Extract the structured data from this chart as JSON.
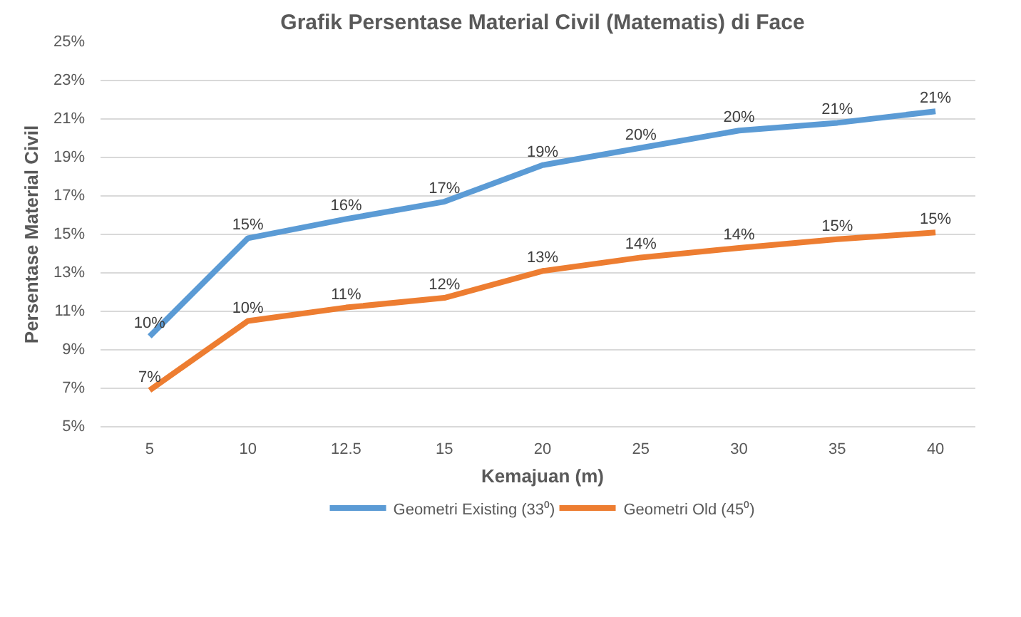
{
  "chart_data": {
    "type": "line",
    "title": "Grafik Persentase Material Civil (Matematis) di Face",
    "xlabel": "Kemajuan (m)",
    "ylabel": "Persentase Material Civil",
    "categories": [
      "5",
      "10",
      "12.5",
      "15",
      "20",
      "25",
      "30",
      "35",
      "40"
    ],
    "series": [
      {
        "name": "Geometri Existing (33⁰)",
        "color": "#5b9bd5",
        "values": [
          9.7,
          14.8,
          15.8,
          16.7,
          18.6,
          19.5,
          20.4,
          20.8,
          21.4
        ],
        "value_labels": [
          "10%",
          "15%",
          "16%",
          "17%",
          "19%",
          "20%",
          "20%",
          "21%",
          "21%"
        ]
      },
      {
        "name": "Geometri Old (45⁰)",
        "color": "#ed7d31",
        "values": [
          6.9,
          10.5,
          11.2,
          11.7,
          13.1,
          13.8,
          14.3,
          14.75,
          15.1
        ],
        "value_labels": [
          "7%",
          "10%",
          "11%",
          "12%",
          "13%",
          "14%",
          "14%",
          "15%",
          "15%"
        ]
      }
    ],
    "ylim": [
      5,
      25
    ],
    "yticks": [
      {
        "value": 5,
        "label": "5%"
      },
      {
        "value": 7,
        "label": "7%"
      },
      {
        "value": 9,
        "label": "9%"
      },
      {
        "value": 11,
        "label": "11%"
      },
      {
        "value": 13,
        "label": "13%"
      },
      {
        "value": 15,
        "label": "15%"
      },
      {
        "value": 17,
        "label": "17%"
      },
      {
        "value": 19,
        "label": "19%"
      },
      {
        "value": 21,
        "label": "21%"
      },
      {
        "value": 23,
        "label": "23%"
      },
      {
        "value": 25,
        "label": "25%"
      }
    ],
    "grid": "y",
    "legend": "bottom",
    "line_style": "solid",
    "marker": "none"
  }
}
